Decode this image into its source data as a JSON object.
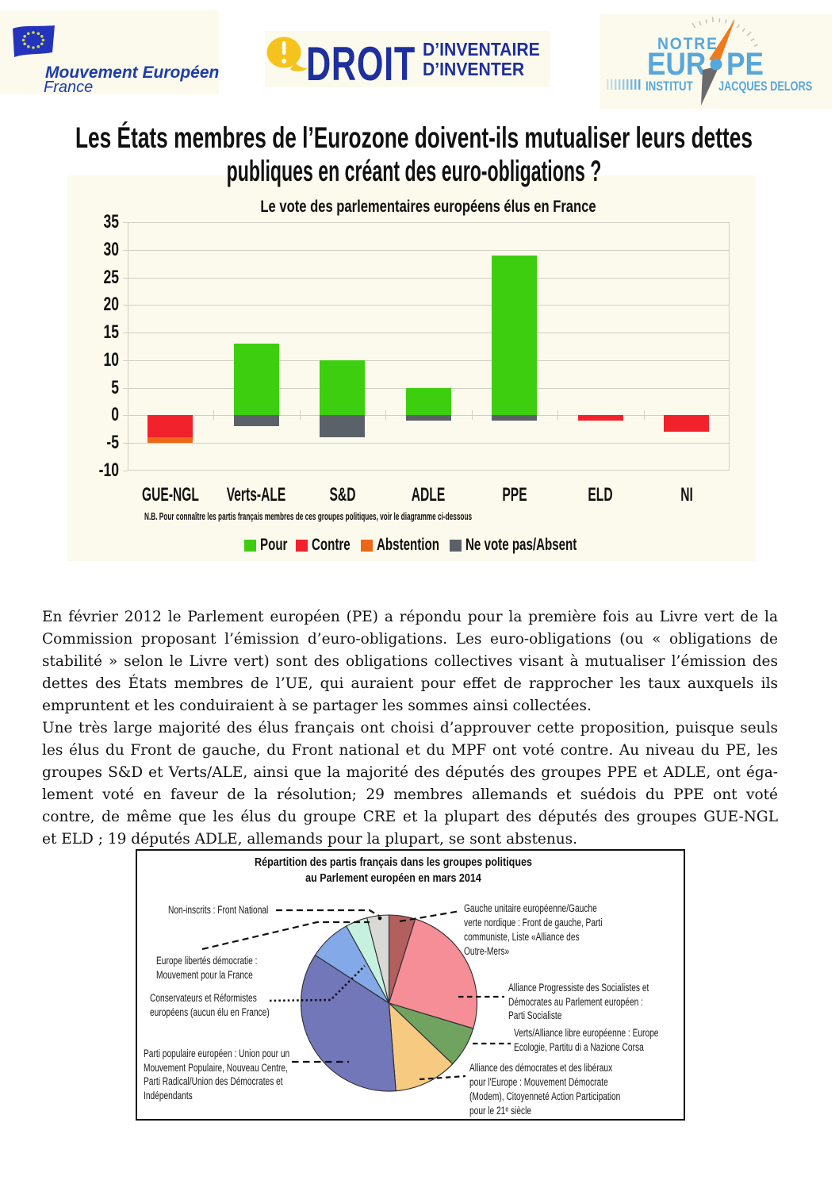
{
  "header": {
    "mouvement": {
      "title": "Mouvement Européen",
      "subtitle": "France",
      "text_color": "#1d3cad",
      "flag_blue": "#2433bb",
      "star_color": "#cdd94e"
    },
    "droit": {
      "title": "DROIT",
      "tagline_line1": "D’INVENTAIRE",
      "tagline_line2": "D’INVENTER",
      "text_color": "#1e2f9e",
      "bubble_color": "#f6c31d"
    },
    "notre_europe": {
      "word_top": "NOTRE",
      "word_left": "EUR",
      "word_right": "PE",
      "sub_left": "INSTITUT",
      "sub_right": "JACQUES DELORS",
      "text_color": "#58a7db",
      "needle_up_color": "#f0791d",
      "needle_down_color": "#6a6a6d"
    }
  },
  "headline": {
    "line1": "Les États membres de l’Eurozone doivent-ils mutualiser leurs dettes",
    "line2": "publiques en créant des euro-obligations ?"
  },
  "chart_data": [
    {
      "type": "bar",
      "title": "Le vote des parlementaires européens élus en France",
      "note": "N.B. Pour connaître les partis français membres de ces groupes politiques, voir le diagramme ci-dessous",
      "categories": [
        "GUE-NGL",
        "Verts-ALE",
        "S&D",
        "ADLE",
        "PPE",
        "ELD",
        "NI"
      ],
      "series": [
        {
          "name": "Pour",
          "color": "#3ece10",
          "values": [
            0,
            13,
            10,
            5,
            29,
            0,
            0
          ]
        },
        {
          "name": "Contre",
          "color": "#f1222b",
          "values": [
            -4,
            0,
            0,
            0,
            0,
            -1,
            -3
          ]
        },
        {
          "name": "Abstention",
          "color": "#ee6716",
          "values": [
            -1,
            0,
            0,
            0,
            0,
            0,
            0
          ]
        },
        {
          "name": "Ne vote pas/Absent",
          "color": "#5a6168",
          "values": [
            0,
            -2,
            -4,
            -1,
            -1,
            0,
            0
          ]
        }
      ],
      "ylim": [
        -10,
        35
      ],
      "ytick_step": 5,
      "yticks": [
        35,
        30,
        25,
        20,
        15,
        10,
        5,
        0,
        -5,
        -10
      ],
      "grid": true,
      "legend_position": "bottom"
    },
    {
      "type": "pie",
      "title": "Répartition des partis français dans les groupes politiques au Parlement européen en mars 2014",
      "slices": [
        {
          "label": "Gauche unitaire européenne/Gauche verte nordique",
          "angle_deg": 17.4,
          "color": "#b25f5d"
        },
        {
          "label": "Alliance Progressiste des Socialistes et Démocrates",
          "angle_deg": 89.4,
          "color": "#f58e96"
        },
        {
          "label": "Verts/Alliance libre européenne",
          "angle_deg": 26.9,
          "color": "#70a360"
        },
        {
          "label": "Alliance des démocrates et des libéraux pour l'Europe",
          "angle_deg": 41.8,
          "color": "#f7ca82"
        },
        {
          "label": "Parti populaire européen",
          "angle_deg": 127.5,
          "color": "#7177b8"
        },
        {
          "label": "Conservateurs et Réformistes européens",
          "angle_deg": 28.0,
          "color": "#84a9e8"
        },
        {
          "label": "Europe libertés démocratie",
          "angle_deg": 14.5,
          "color": "#c7f1df"
        },
        {
          "label": "Non-inscrits",
          "angle_deg": 14.5,
          "color": "#d9d9d6"
        }
      ],
      "start_angle_deg": 0,
      "clockwise": true
    }
  ],
  "body": {
    "paragraphs": [
      {
        "lines": [
          "En février 2012 le Parlement européen (PE) a répondu pour la première fois au Livre vert de la",
          "Commission proposant l’émission d’euro-obligations. Les euro-obligations (ou « obligations de",
          "stabilité » selon le Livre vert) sont des obligations collectives visant à mutualiser l’émission des",
          "dettes des États membres de l’UE, qui auraient pour effet de rapprocher les taux auxquels ils",
          "empruntent et les conduiraient à se partager les sommes ainsi collectées."
        ]
      },
      {
        "lines": [
          "Une très large majorité des élus français ont choisi d’approuver cette proposition, puisque seuls",
          "les élus du Front de gauche, du Front national et du MPF ont voté contre. Au niveau du PE, les",
          "groupes S&D et Verts/ALE, ainsi que la majorité des députés des groupes PPE et ADLE, ont éga-",
          "lement voté en faveur de la résolution; 29 membres allemands et suédois du PPE ont voté",
          "contre, de même que les élus du groupe CRE et la plupart des députés des groupes GUE-NGL",
          "et ELD ; 19 députés ADLE, allemands pour la plupart, se sont abstenus."
        ]
      }
    ]
  },
  "pie_panel": {
    "title_line1": "Répartition des partis français dans les groupes politiques",
    "title_line2": "au Parlement européen en mars 2014",
    "labels": [
      {
        "text": "Non-inscrits : Front National"
      },
      {
        "text": "Europe libertés démocratie :\nMouvement pour la France"
      },
      {
        "text": "Conservateurs et Réformistes\neuropéens (aucun élu en France)"
      },
      {
        "text": "Parti populaire européen : Union pour un\nMouvement Populaire, Nouveau Centre,\nParti Radical/Union des Démocrates et\nIndépendants"
      },
      {
        "text": "Gauche unitaire européenne/Gauche\nverte nordique : Front de gauche, Parti\ncommuniste, Liste «Alliance des\nOutre-Mers»"
      },
      {
        "text": "Alliance Progressiste des Socialistes et\nDémocrates au Parlement européen :\nParti Socialiste"
      },
      {
        "text": "Verts/Alliance libre européenne : Europe\nEcologie, Partitu di a Nazione Corsa"
      },
      {
        "text": "Alliance des démocrates et des libéraux\npour l'Europe : Mouvement Démocrate\n(Modem), Citoyenneté Action Participation\npour le 21ᵉ siècle"
      }
    ]
  }
}
